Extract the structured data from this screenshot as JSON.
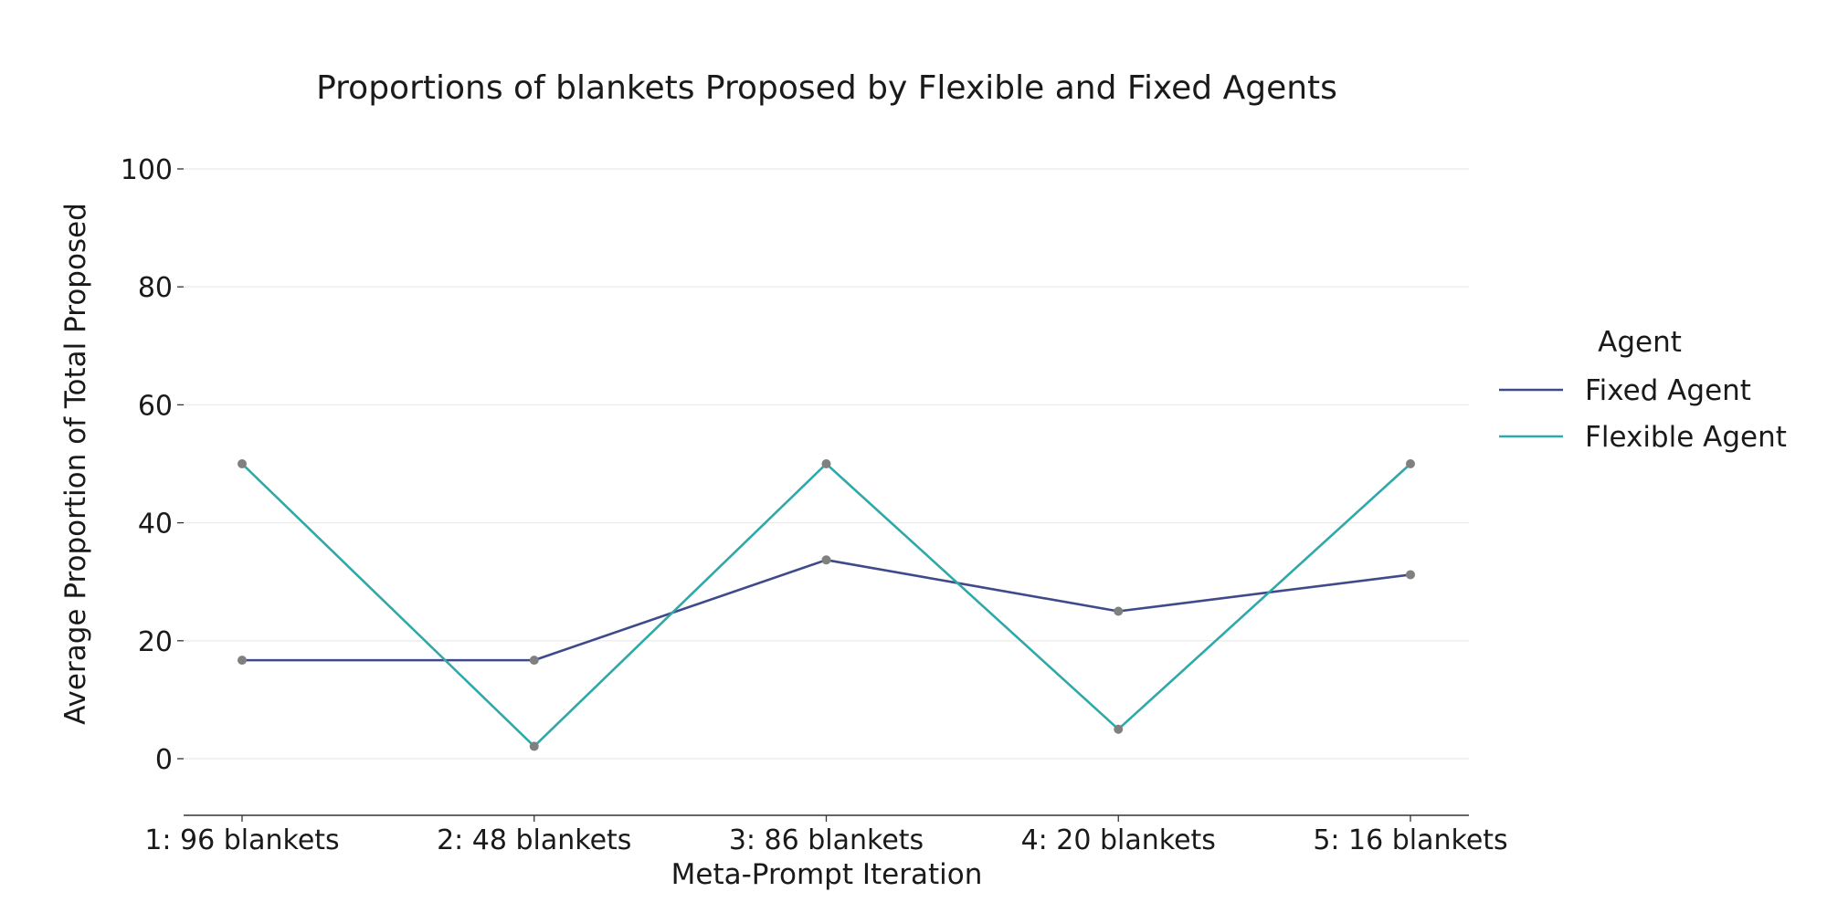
{
  "chart_data": {
    "type": "line",
    "title": "Proportions of blankets Proposed by Flexible and Fixed Agents",
    "xlabel": "Meta-Prompt Iteration",
    "ylabel": "Average Proportion of Total Proposed",
    "categories": [
      "1: 96 blankets",
      "2: 48 blankets",
      "3: 86 blankets",
      "4: 20 blankets",
      "5: 16 blankets"
    ],
    "ylim": [
      -10,
      100
    ],
    "yticks": [
      0,
      20,
      40,
      60,
      80,
      100
    ],
    "grid": true,
    "legend": {
      "title": "Agent",
      "placement": "right"
    },
    "series": [
      {
        "name": "Fixed Agent",
        "color": "#3f4a8a",
        "values": [
          16.7,
          16.7,
          33.7,
          25.0,
          31.2
        ]
      },
      {
        "name": "Flexible Agent",
        "color": "#2fa8a8",
        "values": [
          50.0,
          2.1,
          50.0,
          5.0,
          50.0
        ]
      }
    ],
    "marker_color": "#808080"
  }
}
